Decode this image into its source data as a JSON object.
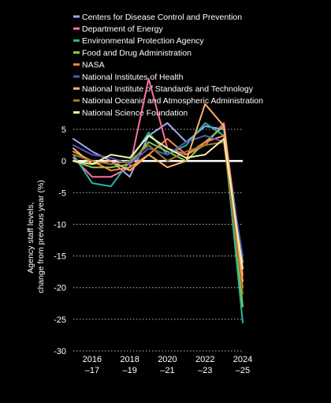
{
  "chart_data": {
    "type": "line",
    "title": "",
    "xlabel": "",
    "ylabel": "Agency staff levels, change from previous year (%)",
    "ylabel_lines": [
      "Agency staff levels,",
      "change from previous year (%)"
    ],
    "x": [
      2015,
      2016,
      2017,
      2018,
      2019,
      2020,
      2021,
      2022,
      2023,
      2024
    ],
    "x_tick_labels": [
      {
        "x": 2016,
        "line1": "2016",
        "line2": "–17"
      },
      {
        "x": 2018,
        "line1": "2018",
        "line2": "–19"
      },
      {
        "x": 2020,
        "line1": "2020",
        "line2": "–21"
      },
      {
        "x": 2022,
        "line1": "2022",
        "line2": "–23"
      },
      {
        "x": 2024,
        "line1": "2024",
        "line2": "–25"
      }
    ],
    "xlim": [
      2015,
      2024
    ],
    "ylim": [
      -30,
      5
    ],
    "y_ticks": [
      5,
      0,
      -5,
      -10,
      -15,
      -20,
      -25,
      -30
    ],
    "y_tick_labels": [
      "5",
      "0",
      "-5",
      "-10",
      "-15",
      "-20",
      "-25",
      "-30"
    ],
    "grid": true,
    "legend_position": "top-left",
    "series": [
      {
        "name": "Centers for Disease Control and Prevention",
        "color": "#9fa6e8",
        "values": [
          3.5,
          1.5,
          0,
          -2.5,
          4,
          6,
          3,
          5.5,
          5,
          -16
        ]
      },
      {
        "name": "Department of Energy",
        "color": "#ff6f9c",
        "values": [
          0.5,
          -2.5,
          -2.5,
          -1,
          13,
          2,
          1,
          2.5,
          6,
          -18
        ]
      },
      {
        "name": "Environmental Protection Agency",
        "color": "#2bb3a6",
        "values": [
          1,
          -3.5,
          -4,
          0,
          4.5,
          1,
          2.5,
          6,
          4,
          -25.5
        ]
      },
      {
        "name": "Food and Drug Administration",
        "color": "#86cf4f",
        "values": [
          0,
          -1,
          -1,
          -0.5,
          3,
          1.5,
          0,
          3,
          5.5,
          -23
        ]
      },
      {
        "name": "NASA",
        "color": "#ff8a3d",
        "values": [
          1.5,
          0,
          -1.5,
          -1,
          1,
          3.5,
          1,
          3,
          4,
          -20
        ]
      },
      {
        "name": "National Institutes of Health",
        "color": "#4e5ab8",
        "values": [
          2.5,
          1,
          0.5,
          -0.5,
          2,
          1,
          3,
          4,
          3,
          -15
        ]
      },
      {
        "name": "National Institute of Standards and Technology",
        "color": "#ffb56b",
        "values": [
          2,
          -0.5,
          0,
          -1.5,
          1,
          -1,
          0,
          9,
          5.5,
          -19
        ]
      },
      {
        "name": "National Oceanic and Atmospheric Administration",
        "color": "#a0792a",
        "values": [
          1,
          0,
          -0.5,
          0,
          2.5,
          0,
          1.5,
          2.5,
          3,
          -21
        ]
      },
      {
        "name": "National Science Foundation",
        "color": "#f6f1a8",
        "values": [
          0,
          -0.5,
          1,
          0.5,
          4,
          2,
          0.5,
          1,
          3.5,
          -17
        ]
      }
    ]
  }
}
